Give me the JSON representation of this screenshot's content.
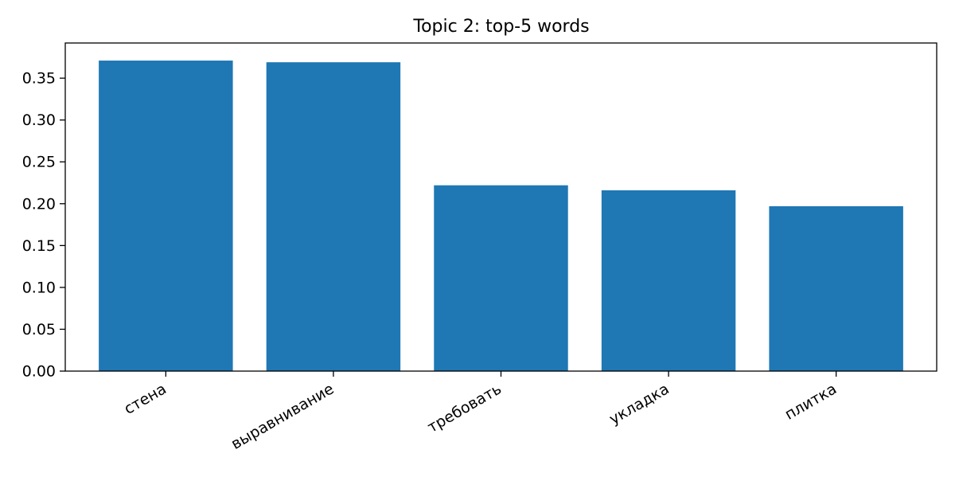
{
  "chart_data": {
    "type": "bar",
    "title": "Topic 2: top-5 words",
    "xlabel": "",
    "ylabel": "",
    "categories": [
      "стена",
      "выравнивание",
      "требовать",
      "укладка",
      "плитка"
    ],
    "values": [
      0.371,
      0.369,
      0.222,
      0.216,
      0.197
    ],
    "ylim": [
      0,
      0.392
    ],
    "yticks": [
      0.0,
      0.05,
      0.1,
      0.15,
      0.2,
      0.25,
      0.3,
      0.35
    ],
    "ytick_labels": [
      "0.00",
      "0.05",
      "0.10",
      "0.15",
      "0.20",
      "0.25",
      "0.30",
      "0.35"
    ],
    "grid": false,
    "legend": "none",
    "bar_color": "#1f77b4",
    "xtick_rotation_deg": 30
  }
}
